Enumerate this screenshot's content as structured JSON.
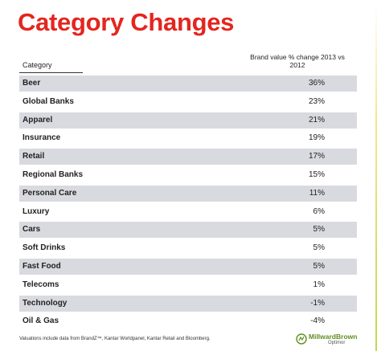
{
  "title": "Category Changes",
  "table": {
    "header_category": "Category",
    "header_value": "Brand value % change 2013 vs 2012",
    "rows": [
      {
        "category": "Beer",
        "value": "36%"
      },
      {
        "category": "Global Banks",
        "value": "23%"
      },
      {
        "category": "Apparel",
        "value": "21%"
      },
      {
        "category": "Insurance",
        "value": "19%"
      },
      {
        "category": "Retail",
        "value": "17%"
      },
      {
        "category": "Regional Banks",
        "value": "15%"
      },
      {
        "category": "Personal Care",
        "value": "11%"
      },
      {
        "category": "Luxury",
        "value": "6%"
      },
      {
        "category": "Cars",
        "value": "5%"
      },
      {
        "category": "Soft Drinks",
        "value": "5%"
      },
      {
        "category": "Fast Food",
        "value": "5%"
      },
      {
        "category": "Telecoms",
        "value": "1%"
      },
      {
        "category": "Technology",
        "value": "-1%"
      },
      {
        "category": "Oil & Gas",
        "value": "-4%"
      }
    ]
  },
  "footnote": "Valuations include data from BrandZ™, Kantar Worldpanel, Kantar Retail and Bloomberg.",
  "logo": {
    "name": "MillwardBrown",
    "sub": "Optimor"
  },
  "colors": {
    "title": "#e3261f",
    "row_shade": "#d9dadf",
    "logo_green": "#5f8f1e"
  }
}
